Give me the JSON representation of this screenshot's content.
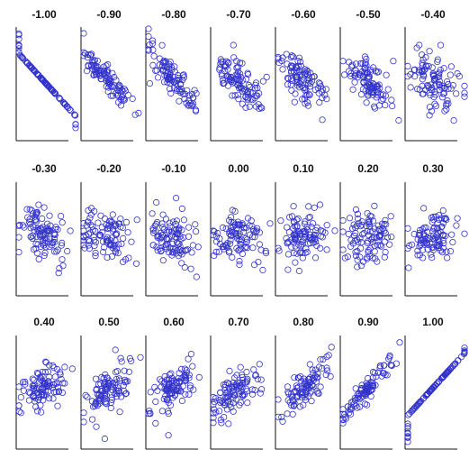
{
  "chart_data": {
    "type": "scatter",
    "layout": {
      "rows": 3,
      "cols": 7
    },
    "points_per_panel": 100,
    "grid": false,
    "panels": [
      {
        "title": "-1.00",
        "r": -1.0
      },
      {
        "title": "-0.90",
        "r": -0.9
      },
      {
        "title": "-0.80",
        "r": -0.8
      },
      {
        "title": "-0.70",
        "r": -0.7
      },
      {
        "title": "-0.60",
        "r": -0.6
      },
      {
        "title": "-0.50",
        "r": -0.5
      },
      {
        "title": "-0.40",
        "r": -0.4
      },
      {
        "title": "-0.30",
        "r": -0.3
      },
      {
        "title": "-0.20",
        "r": -0.2
      },
      {
        "title": "-0.10",
        "r": -0.1
      },
      {
        "title": "0.00",
        "r": 0.0
      },
      {
        "title": "0.10",
        "r": 0.1
      },
      {
        "title": "0.20",
        "r": 0.2
      },
      {
        "title": "0.30",
        "r": 0.3
      },
      {
        "title": "0.40",
        "r": 0.4
      },
      {
        "title": "0.50",
        "r": 0.5
      },
      {
        "title": "0.60",
        "r": 0.6
      },
      {
        "title": "0.70",
        "r": 0.7
      },
      {
        "title": "0.80",
        "r": 0.8
      },
      {
        "title": "0.90",
        "r": 0.9
      },
      {
        "title": "1.00",
        "r": 1.0
      }
    ],
    "marker": {
      "shape": "open-circle",
      "color": "#3333cc"
    },
    "axis_color": "#111111",
    "background": "#ffffff"
  }
}
